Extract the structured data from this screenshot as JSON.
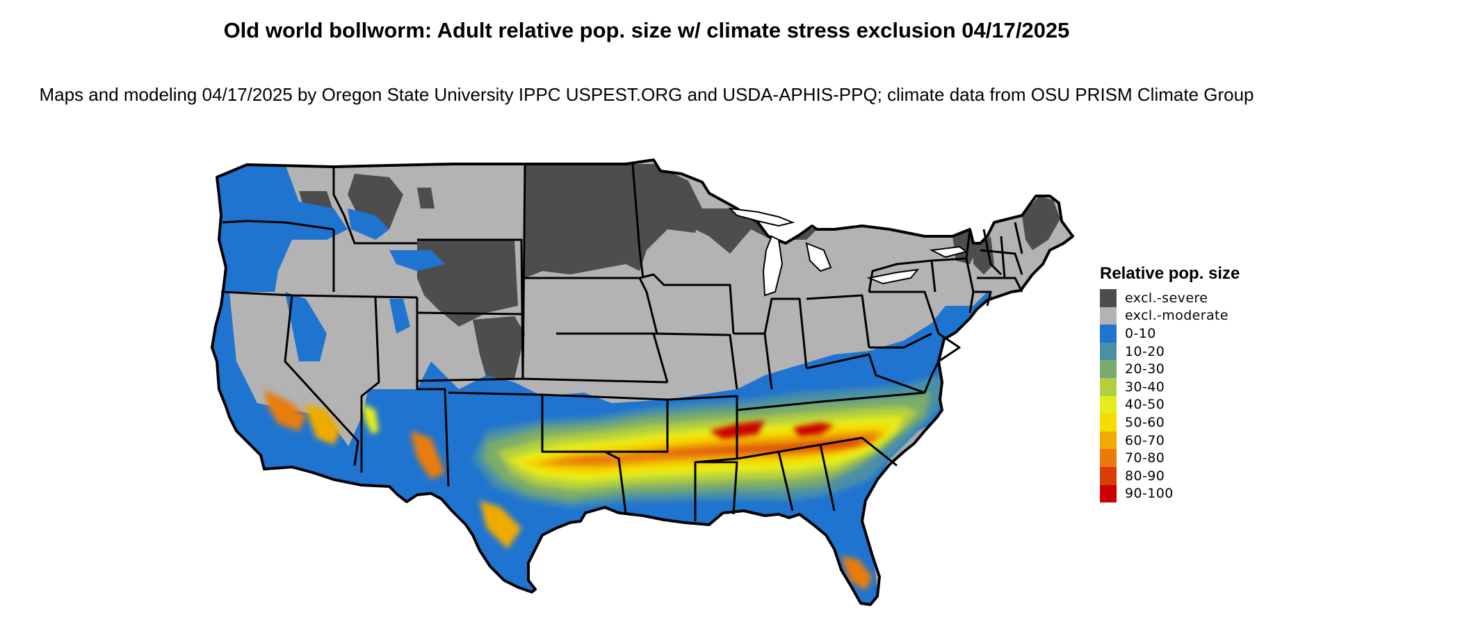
{
  "title": "Old world bollworm: Adult relative pop. size w/ climate stress exclusion 04/17/2025",
  "subtitle": "Maps and modeling 04/17/2025 by Oregon State University IPPC USPEST.ORG and USDA-APHIS-PPQ; climate data from OSU PRISM Climate Group",
  "legend": {
    "title": "Relative pop. size",
    "items": [
      {
        "label": "excl.-severe",
        "color": "#4d4d4d"
      },
      {
        "label": "excl.-moderate",
        "color": "#b3b3b3"
      },
      {
        "label": "0-10",
        "color": "#1f74d0"
      },
      {
        "label": "10-20",
        "color": "#4a8fa8"
      },
      {
        "label": "20-30",
        "color": "#7bab6c"
      },
      {
        "label": "30-40",
        "color": "#b3cf3f"
      },
      {
        "label": "40-50",
        "color": "#e4ec1c"
      },
      {
        "label": "50-60",
        "color": "#f6db00"
      },
      {
        "label": "60-70",
        "color": "#f0ab00"
      },
      {
        "label": "70-80",
        "color": "#e87b0c"
      },
      {
        "label": "80-90",
        "color": "#d93d05"
      },
      {
        "label": "90-100",
        "color": "#cc0000"
      }
    ]
  },
  "map": {
    "region": "Contiguous United States",
    "boundaries": "state borders"
  }
}
